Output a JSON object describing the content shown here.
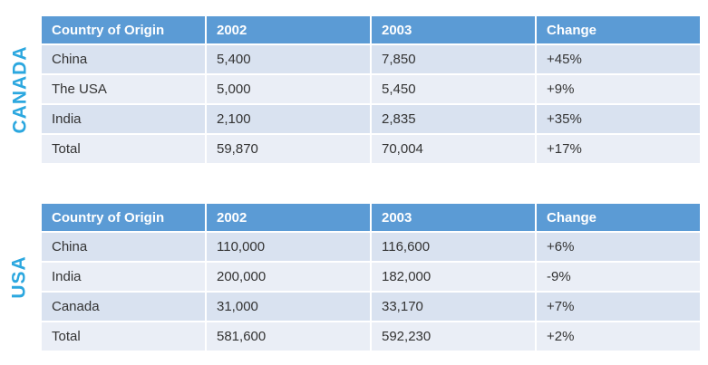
{
  "colors": {
    "header_bg": "#5B9BD5",
    "header_text": "#FFFFFF",
    "row_band_dark": "#D9E2F0",
    "row_band_light": "#EAEEF6",
    "side_label": "#2BA7DF",
    "cell_text": "#333333",
    "background": "#FFFFFF"
  },
  "chart_data": [
    {
      "type": "table",
      "title": "CANADA",
      "columns": [
        "Country of Origin",
        "2002",
        "2003",
        "Change"
      ],
      "rows": [
        [
          "China",
          "5,400",
          "7,850",
          "+45%"
        ],
        [
          "The USA",
          "5,000",
          "5,450",
          "+9%"
        ],
        [
          "India",
          "2,100",
          "2,835",
          "+35%"
        ],
        [
          "Total",
          "59,870",
          "70,004",
          "+17%"
        ]
      ]
    },
    {
      "type": "table",
      "title": "USA",
      "columns": [
        "Country of Origin",
        "2002",
        "2003",
        "Change"
      ],
      "rows": [
        [
          "China",
          "110,000",
          "116,600",
          "+6%"
        ],
        [
          "India",
          "200,000",
          "182,000",
          "-9%"
        ],
        [
          "Canada",
          "31,000",
          "33,170",
          "+7%"
        ],
        [
          "Total",
          "581,600",
          "592,230",
          "+2%"
        ]
      ]
    }
  ]
}
